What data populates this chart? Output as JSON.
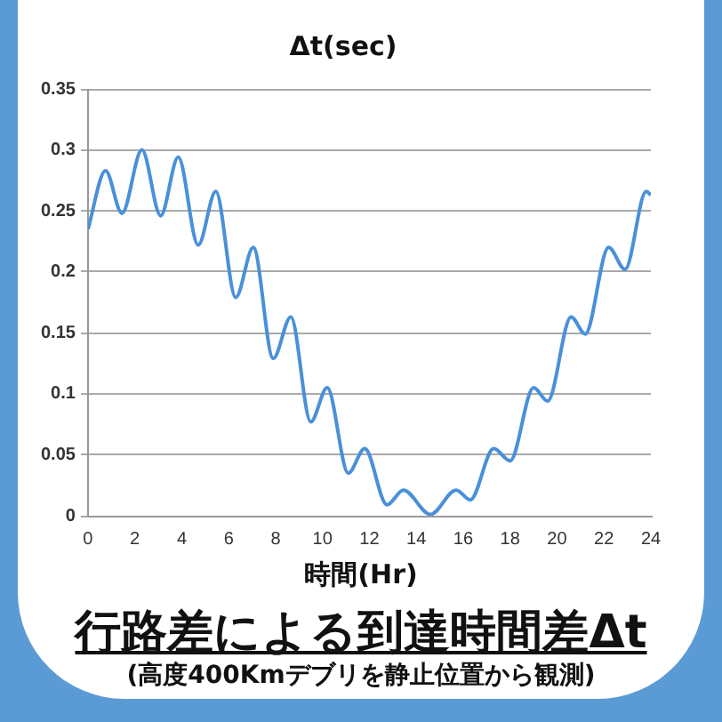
{
  "chart_data": {
    "type": "line",
    "title": "Δt(sec)",
    "xlabel": "時間(Hr)",
    "annotations": [
      "行路差による到達時間差Δt",
      "(高度400Kmデブリを静止位置から観測)"
    ],
    "x": [
      0,
      0.75,
      1.45,
      2.3,
      3.1,
      3.85,
      4.7,
      5.45,
      6.3,
      7.05,
      7.9,
      8.65,
      9.5,
      10.2,
      11.1,
      11.8,
      12.75,
      13.45,
      14.6,
      15.7,
      16.3,
      17.3,
      18.0,
      19.0,
      19.6,
      20.6,
      21.2,
      22.2,
      22.9,
      23.8,
      24
    ],
    "series": [
      {
        "color": "#4a90d9",
        "values": [
          0.235,
          0.283,
          0.248,
          0.3,
          0.246,
          0.294,
          0.222,
          0.266,
          0.179,
          0.22,
          0.129,
          0.163,
          0.077,
          0.105,
          0.035,
          0.055,
          0.009,
          0.021,
          0.001,
          0.021,
          0.013,
          0.055,
          0.045,
          0.105,
          0.094,
          0.163,
          0.149,
          0.22,
          0.202,
          0.266,
          0.263
        ]
      }
    ],
    "xlim": [
      0,
      24
    ],
    "xticks": [
      0,
      2,
      4,
      6,
      8,
      10,
      12,
      14,
      16,
      18,
      20,
      22,
      24
    ],
    "ylim": [
      0,
      0.35
    ],
    "yticks": [
      0,
      0.05,
      0.1,
      0.15,
      0.2,
      0.25,
      0.3,
      0.35
    ],
    "grid": "y",
    "legend": false,
    "marker": "none",
    "line_style": "solid"
  }
}
